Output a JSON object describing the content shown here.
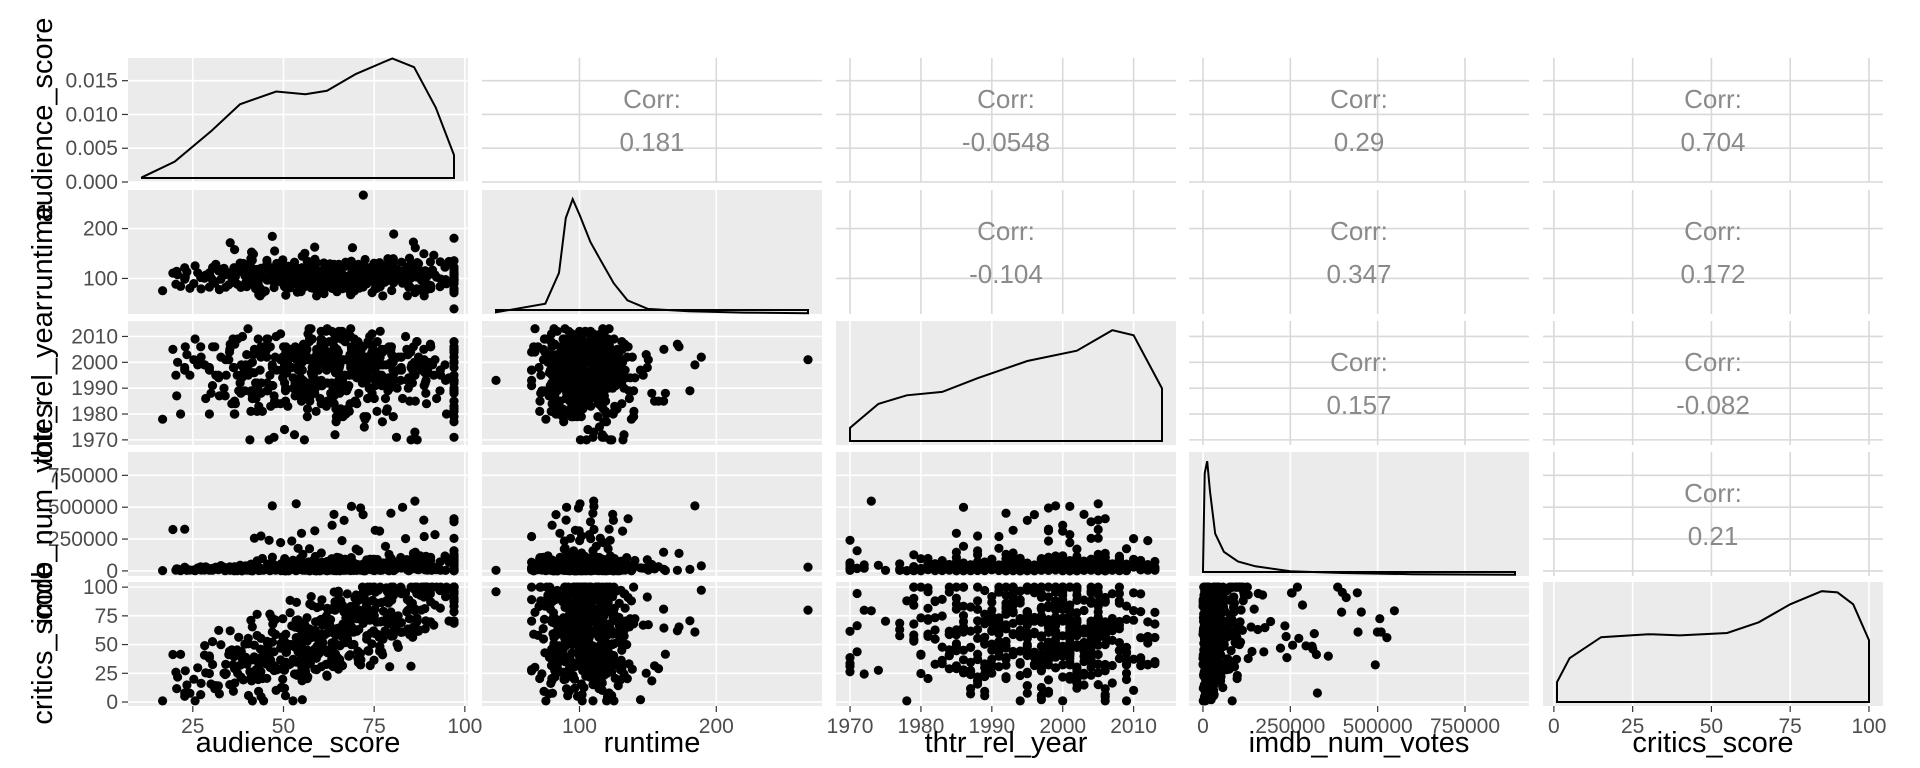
{
  "chart_data": {
    "type": "pairs",
    "variables": [
      "audience_score",
      "runtime",
      "thtr_rel_year",
      "imdb_num_votes",
      "critics_score"
    ],
    "column_ticks": {
      "audience_score": [
        25,
        50,
        75,
        100
      ],
      "runtime": [
        100,
        200
      ],
      "thtr_rel_year": [
        1970,
        1980,
        1990,
        2000,
        2010
      ],
      "imdb_num_votes": [
        0,
        250000,
        500000,
        750000
      ],
      "critics_score": [
        0,
        25,
        50,
        75,
        100
      ]
    },
    "column_tick_labels": {
      "audience_score": [
        "25",
        "50",
        "75",
        "100"
      ],
      "runtime": [
        "100",
        "200"
      ],
      "thtr_rel_year": [
        "1970",
        "1980",
        "1990",
        "2000",
        "2010"
      ],
      "imdb_num_votes": [
        "0",
        "250000",
        "500000",
        "750000"
      ],
      "critics_score": [
        "0",
        "25",
        "50",
        "75",
        "100"
      ]
    },
    "row_ticks": {
      "audience_score": [
        0.0,
        0.005,
        0.01,
        0.015
      ],
      "runtime": [
        100,
        200
      ],
      "thtr_rel_year": [
        1970,
        1980,
        1990,
        2000,
        2010
      ],
      "imdb_num_votes": [
        0,
        250000,
        500000,
        750000
      ],
      "critics_score": [
        0,
        25,
        50,
        75,
        100
      ]
    },
    "row_tick_labels": {
      "audience_score": [
        "0.000",
        "0.005",
        "0.010",
        "0.015"
      ],
      "runtime": [
        "100",
        "200"
      ],
      "thtr_rel_year": [
        "1970",
        "1980",
        "1990",
        "2000",
        "2010"
      ],
      "imdb_num_votes": [
        "0",
        "250000",
        "500000",
        "750000"
      ],
      "critics_score": [
        "0",
        "25",
        "50",
        "75",
        "100"
      ]
    },
    "ranges": {
      "audience_score": [
        11,
        97
      ],
      "runtime": [
        39,
        267
      ],
      "thtr_rel_year": [
        1970,
        2014
      ],
      "imdb_num_votes": [
        180,
        893008
      ],
      "critics_score": [
        1,
        100
      ]
    },
    "density_ylim": [
      0,
      0.018
    ],
    "correlations": [
      {
        "row": "runtime",
        "col": "audience_score",
        "label": "Corr:",
        "value": "0.181"
      },
      {
        "row": "thtr_rel_year",
        "col": "audience_score",
        "label": "Corr:",
        "value": "-0.0548"
      },
      {
        "row": "imdb_num_votes",
        "col": "audience_score",
        "label": "Corr:",
        "value": "0.29"
      },
      {
        "row": "critics_score",
        "col": "audience_score",
        "label": "Corr:",
        "value": "0.704"
      },
      {
        "row": "thtr_rel_year",
        "col": "runtime",
        "label": "Corr:",
        "value": "-0.104"
      },
      {
        "row": "imdb_num_votes",
        "col": "runtime",
        "label": "Corr:",
        "value": "0.347"
      },
      {
        "row": "critics_score",
        "col": "runtime",
        "label": "Corr:",
        "value": "0.172"
      },
      {
        "row": "imdb_num_votes",
        "col": "thtr_rel_year",
        "label": "Corr:",
        "value": "0.157"
      },
      {
        "row": "critics_score",
        "col": "thtr_rel_year",
        "label": "Corr:",
        "value": "-0.082"
      },
      {
        "row": "critics_score",
        "col": "imdb_num_votes",
        "label": "Corr:",
        "value": "0.21"
      }
    ],
    "densities": {
      "audience_score": [
        [
          11,
          0.0007
        ],
        [
          20,
          0.003
        ],
        [
          30,
          0.0075
        ],
        [
          38,
          0.0115
        ],
        [
          48,
          0.0134
        ],
        [
          56,
          0.013
        ],
        [
          62,
          0.0135
        ],
        [
          70,
          0.016
        ],
        [
          80,
          0.0183
        ],
        [
          86,
          0.017
        ],
        [
          92,
          0.011
        ],
        [
          97,
          0.004
        ]
      ],
      "runtime": [
        [
          39,
          0.0005
        ],
        [
          75,
          0.003
        ],
        [
          85,
          0.012
        ],
        [
          90,
          0.028
        ],
        [
          95,
          0.0335
        ],
        [
          100,
          0.029
        ],
        [
          108,
          0.021
        ],
        [
          115,
          0.016
        ],
        [
          125,
          0.009
        ],
        [
          135,
          0.004
        ],
        [
          150,
          0.0015
        ],
        [
          180,
          0.0008
        ],
        [
          220,
          0.0004
        ],
        [
          267,
          0.0002
        ]
      ],
      "thtr_rel_year": [
        [
          1970,
          0.005
        ],
        [
          1974,
          0.012
        ],
        [
          1978,
          0.0145
        ],
        [
          1983,
          0.0155
        ],
        [
          1988,
          0.0195
        ],
        [
          1995,
          0.0245
        ],
        [
          2002,
          0.0275
        ],
        [
          2007,
          0.0335
        ],
        [
          2010,
          0.032
        ],
        [
          2014,
          0.0165
        ]
      ],
      "imdb_num_votes": [
        [
          180,
          5e-07
        ],
        [
          5000,
          8.5e-06
        ],
        [
          12000,
          9.5e-06
        ],
        [
          20000,
          7e-06
        ],
        [
          35000,
          3.5e-06
        ],
        [
          60000,
          2e-06
        ],
        [
          100000,
          1.2e-06
        ],
        [
          150000,
          8e-07
        ],
        [
          250000,
          4e-07
        ],
        [
          400000,
          2.5e-07
        ],
        [
          600000,
          1.5e-07
        ],
        [
          893008,
          1e-07
        ]
      ],
      "critics_score": [
        [
          1,
          0.004
        ],
        [
          5,
          0.008
        ],
        [
          15,
          0.0115
        ],
        [
          30,
          0.012
        ],
        [
          40,
          0.0118
        ],
        [
          55,
          0.0122
        ],
        [
          65,
          0.014
        ],
        [
          75,
          0.017
        ],
        [
          85,
          0.0192
        ],
        [
          90,
          0.019
        ],
        [
          95,
          0.017
        ],
        [
          100,
          0.011
        ]
      ]
    }
  }
}
